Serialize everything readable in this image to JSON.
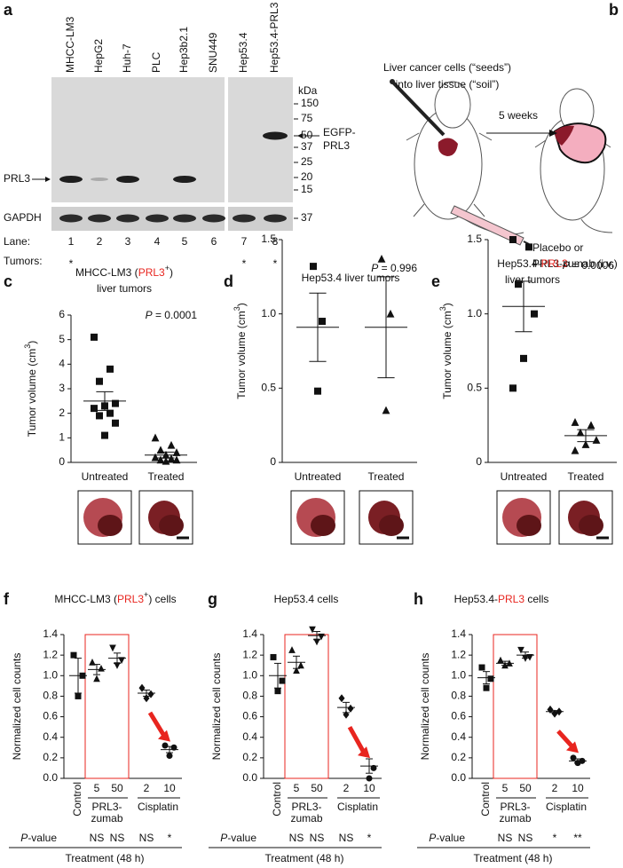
{
  "panel_labels": [
    "a",
    "b",
    "c",
    "d",
    "e",
    "f",
    "g",
    "h"
  ],
  "blot": {
    "lanes": [
      "MHCC-LM3",
      "HepG2",
      "Huh-7",
      "PLC",
      "Hep3b2.1",
      "SNU449",
      "Hep53.4",
      "Hep53.4-PRL3"
    ],
    "kda_label": "kDa",
    "markers": [
      150,
      75,
      50,
      37,
      25,
      20,
      15
    ],
    "gapdh_marker": 37,
    "prl3_label": "PRL3",
    "gapdh_label": "GAPDH",
    "egfp_label": [
      "EGFP-",
      "PRL3"
    ],
    "lane_label": "Lane:",
    "lane_numbers": [
      1,
      2,
      3,
      4,
      5,
      6,
      7,
      8
    ],
    "tumors_label": "Tumors:",
    "tumors": [
      "*",
      null,
      null,
      null,
      null,
      null,
      "*",
      "*"
    ]
  },
  "diagram": {
    "injection": [
      "Liver cancer cells (“seeds”)",
      "into liver tissue (“soil”)"
    ],
    "interval": "5 weeks",
    "treatment": [
      "Placebo or",
      "PRL3-zumab (i.v.)"
    ]
  },
  "chart_data": [
    {
      "type": "dot",
      "title": [
        [
          "MHCC-LM3 (",
          "PRL3",
          "+",
          ")"
        ],
        [
          "liver tumors"
        ]
      ],
      "ylabel": [
        "Tumor volume (cm",
        "3",
        ")"
      ],
      "categories": [
        "Untreated",
        "Treated"
      ],
      "values": [
        [
          5.1,
          3.8,
          3.3,
          2.4,
          2.3,
          2.2,
          2.0,
          1.9,
          1.6,
          1.1
        ],
        [
          1.0,
          0.7,
          0.5,
          0.4,
          0.3,
          0.2,
          0.15,
          0.1,
          0.1,
          0.05
        ]
      ],
      "mean": [
        2.5,
        0.3
      ],
      "sem": [
        0.38,
        0.12
      ],
      "color": "#111111",
      "ylim": [
        0,
        6
      ],
      "yticks": [
        0,
        1,
        2,
        3,
        4,
        5,
        6
      ],
      "annotation": [
        "P",
        " = 0.0001"
      ],
      "annotation_color": "#e8251f"
    },
    {
      "type": "dot",
      "title": [
        [
          "Hep53.4 liver tumors"
        ]
      ],
      "ylabel": [
        "Tumor volume (cm",
        "3",
        ")"
      ],
      "categories": [
        "Untreated",
        "Treated"
      ],
      "values": [
        [
          1.32,
          0.95,
          0.48
        ],
        [
          1.37,
          1.0,
          0.35
        ]
      ],
      "mean": [
        0.91,
        0.91
      ],
      "sem": [
        0.23,
        0.34
      ],
      "color": "#111111",
      "ylim": [
        0,
        1.5
      ],
      "yticks": [
        0,
        0.5,
        {
          "value": 1,
          "label": "1.0"
        },
        1.5
      ],
      "annotation": [
        "P",
        " = 0.996"
      ],
      "annotation_color": "#111111"
    },
    {
      "type": "dot",
      "title": [
        [
          "Hep53.4-",
          "PRL3"
        ],
        [
          "liver tumors"
        ]
      ],
      "ylabel": [
        "Tumor volume (cm",
        "3",
        ")"
      ],
      "categories": [
        "Untreated",
        "Treated"
      ],
      "values": [
        [
          1.5,
          1.45,
          1.2,
          1.0,
          0.7,
          0.5
        ],
        [
          0.27,
          0.25,
          0.2,
          0.15,
          0.12,
          0.08
        ]
      ],
      "mean": [
        1.05,
        0.18
      ],
      "sem": [
        0.17,
        0.04
      ],
      "color": "#111111",
      "ylim": [
        0,
        1.5
      ],
      "yticks": [
        0,
        0.5,
        {
          "value": 1,
          "label": "1.0"
        },
        1.5
      ],
      "annotation": [
        "P",
        " = 0.0006"
      ],
      "annotation_color": "#e8251f"
    },
    {
      "type": "dot",
      "title": [
        [
          "MHCC-LM3 (",
          "PRL3",
          "+",
          ") cells"
        ]
      ],
      "ylabel": [
        "Normalized cell counts"
      ],
      "categories": [
        "Control",
        "5",
        "50",
        "2",
        "10"
      ],
      "values": [
        [
          1.2,
          1.0,
          0.8
        ],
        [
          1.13,
          1.07,
          0.97
        ],
        [
          1.27,
          1.15,
          1.1
        ],
        [
          0.88,
          0.82,
          0.78
        ],
        [
          0.32,
          0.3,
          0.22
        ]
      ],
      "mean": [
        1.0,
        1.06,
        1.17,
        0.83,
        0.28
      ],
      "sem": [
        0.17,
        0.05,
        0.05,
        0.03,
        0.03
      ],
      "color": "#111111",
      "ylim": [
        0,
        1.4
      ],
      "yticks": [
        {
          "value": 0,
          "label": "0.0"
        },
        0.2,
        0.4,
        0.6,
        0.8,
        {
          "value": 1,
          "label": "1.0"
        },
        1.2,
        1.4
      ],
      "group_labels": [
        [
          "PRL3-",
          "zumab"
        ],
        [
          "Cisplatin"
        ]
      ],
      "p_value_label": [
        "P",
        "-value"
      ],
      "p_values": [
        null,
        "NS",
        "NS",
        "NS",
        "*"
      ],
      "xlabel": "Treatment (48 h)"
    },
    {
      "type": "dot",
      "title": [
        [
          "Hep53.4 cells"
        ]
      ],
      "ylabel": [
        "Normalized cell counts"
      ],
      "categories": [
        "Control",
        "5",
        "50",
        "2",
        "10"
      ],
      "values": [
        [
          1.18,
          0.95,
          0.85
        ],
        [
          1.25,
          1.1,
          1.05
        ],
        [
          1.45,
          1.38,
          1.33
        ],
        [
          0.78,
          0.68,
          0.62
        ],
        [
          0.25,
          0.1,
          0.0
        ]
      ],
      "mean": [
        1.0,
        1.13,
        1.39,
        0.69,
        0.12
      ],
      "sem": [
        0.12,
        0.06,
        0.04,
        0.05,
        0.07
      ],
      "color": "#111111",
      "ylim": [
        0,
        1.4
      ],
      "yticks": [
        {
          "value": 0,
          "label": "0.0"
        },
        0.2,
        0.4,
        0.6,
        0.8,
        {
          "value": 1,
          "label": "1.0"
        },
        1.2,
        1.4
      ],
      "group_labels": [
        [
          "PRL3-",
          "zumab"
        ],
        [
          "Cisplatin"
        ]
      ],
      "p_value_label": [
        "P",
        "-value"
      ],
      "p_values": [
        null,
        "NS",
        "NS",
        "NS",
        "*"
      ],
      "xlabel": "Treatment (48 h)"
    },
    {
      "type": "dot",
      "title": [
        [
          "Hep53.4-",
          "PRL3",
          " cells"
        ]
      ],
      "ylabel": [
        "Normalized cell counts"
      ],
      "categories": [
        "Control",
        "5",
        "50",
        "2",
        "10"
      ],
      "values": [
        [
          1.08,
          0.97,
          0.88
        ],
        [
          1.15,
          1.12,
          1.1
        ],
        [
          1.25,
          1.18,
          1.17
        ],
        [
          0.67,
          0.65,
          0.63
        ],
        [
          0.2,
          0.17,
          0.15
        ]
      ],
      "mean": [
        0.98,
        1.12,
        1.2,
        0.65,
        0.17
      ],
      "sem": [
        0.06,
        0.02,
        0.03,
        0.01,
        0.02
      ],
      "color": "#111111",
      "ylim": [
        0,
        1.4
      ],
      "yticks": [
        {
          "value": 0,
          "label": "0.0"
        },
        0.2,
        0.4,
        0.6,
        0.8,
        {
          "value": 1,
          "label": "1.0"
        },
        1.2,
        1.4
      ],
      "group_labels": [
        [
          "PRL3-",
          "zumab"
        ],
        [
          "Cisplatin"
        ]
      ],
      "p_value_label": [
        "P",
        "-value"
      ],
      "p_values": [
        null,
        "NS",
        "NS",
        "*",
        "**"
      ],
      "xlabel": "Treatment (48 h)"
    }
  ]
}
